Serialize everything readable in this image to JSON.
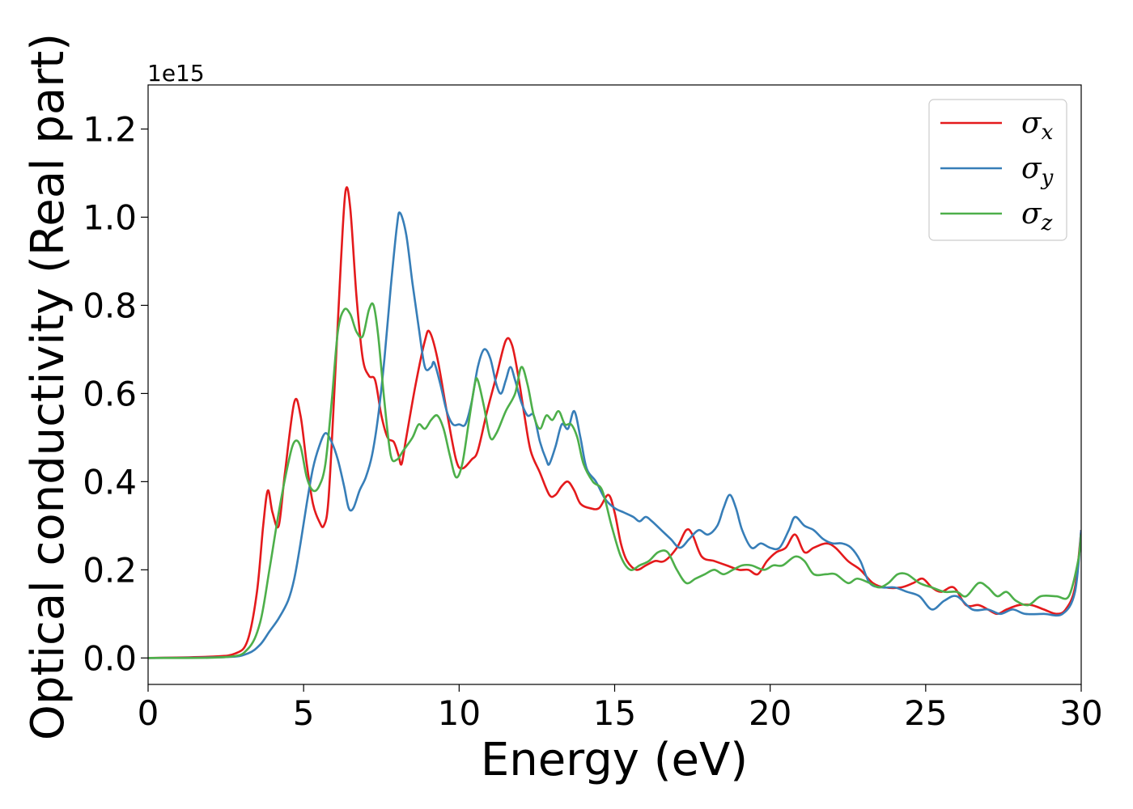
{
  "chart_data": {
    "type": "line",
    "xlabel": "Energy (eV)",
    "ylabel": "Optical conductivity (Real part)",
    "y_offset_label": "1e15",
    "xlim": [
      0,
      30
    ],
    "ylim": [
      -0.06,
      1.3
    ],
    "x_ticks": [
      0,
      5,
      10,
      15,
      20,
      25,
      30
    ],
    "x_tick_labels": [
      "0",
      "5",
      "10",
      "15",
      "20",
      "25",
      "30"
    ],
    "y_ticks": [
      0.0,
      0.2,
      0.4,
      0.6,
      0.8,
      1.0,
      1.2
    ],
    "y_tick_labels": [
      "0.0",
      "0.2",
      "0.4",
      "0.6",
      "0.8",
      "1.0",
      "1.2"
    ],
    "grid": false,
    "legend_position": "top-right",
    "series": [
      {
        "name": "σ",
        "subscript": "x",
        "color": "#e41a1c",
        "points": [
          [
            0,
            0
          ],
          [
            2,
            0.003
          ],
          [
            2.8,
            0.01
          ],
          [
            3.2,
            0.04
          ],
          [
            3.5,
            0.15
          ],
          [
            3.7,
            0.3
          ],
          [
            3.85,
            0.38
          ],
          [
            4.0,
            0.33
          ],
          [
            4.2,
            0.3
          ],
          [
            4.4,
            0.42
          ],
          [
            4.7,
            0.58
          ],
          [
            4.9,
            0.55
          ],
          [
            5.1,
            0.44
          ],
          [
            5.3,
            0.35
          ],
          [
            5.5,
            0.31
          ],
          [
            5.65,
            0.3
          ],
          [
            5.8,
            0.36
          ],
          [
            6.0,
            0.62
          ],
          [
            6.2,
            0.9
          ],
          [
            6.35,
            1.06
          ],
          [
            6.5,
            1.02
          ],
          [
            6.7,
            0.82
          ],
          [
            6.9,
            0.68
          ],
          [
            7.1,
            0.64
          ],
          [
            7.3,
            0.63
          ],
          [
            7.5,
            0.55
          ],
          [
            7.7,
            0.5
          ],
          [
            7.9,
            0.49
          ],
          [
            8.05,
            0.46
          ],
          [
            8.15,
            0.44
          ],
          [
            8.3,
            0.5
          ],
          [
            8.6,
            0.62
          ],
          [
            8.9,
            0.72
          ],
          [
            9.05,
            0.74
          ],
          [
            9.3,
            0.68
          ],
          [
            9.6,
            0.56
          ],
          [
            9.9,
            0.45
          ],
          [
            10.1,
            0.43
          ],
          [
            10.4,
            0.45
          ],
          [
            10.6,
            0.47
          ],
          [
            10.9,
            0.56
          ],
          [
            11.2,
            0.64
          ],
          [
            11.5,
            0.72
          ],
          [
            11.7,
            0.71
          ],
          [
            11.9,
            0.64
          ],
          [
            12.1,
            0.55
          ],
          [
            12.3,
            0.47
          ],
          [
            12.6,
            0.42
          ],
          [
            12.9,
            0.37
          ],
          [
            13.1,
            0.37
          ],
          [
            13.3,
            0.39
          ],
          [
            13.5,
            0.4
          ],
          [
            13.7,
            0.38
          ],
          [
            13.9,
            0.35
          ],
          [
            14.2,
            0.34
          ],
          [
            14.5,
            0.34
          ],
          [
            14.8,
            0.37
          ],
          [
            15.0,
            0.33
          ],
          [
            15.2,
            0.26
          ],
          [
            15.4,
            0.22
          ],
          [
            15.7,
            0.2
          ],
          [
            16.0,
            0.21
          ],
          [
            16.3,
            0.22
          ],
          [
            16.6,
            0.22
          ],
          [
            17.0,
            0.25
          ],
          [
            17.3,
            0.29
          ],
          [
            17.5,
            0.28
          ],
          [
            17.8,
            0.23
          ],
          [
            18.2,
            0.22
          ],
          [
            18.6,
            0.21
          ],
          [
            19.0,
            0.2
          ],
          [
            19.3,
            0.2
          ],
          [
            19.6,
            0.19
          ],
          [
            19.9,
            0.22
          ],
          [
            20.2,
            0.24
          ],
          [
            20.5,
            0.25
          ],
          [
            20.8,
            0.28
          ],
          [
            21.1,
            0.24
          ],
          [
            21.4,
            0.25
          ],
          [
            21.8,
            0.26
          ],
          [
            22.1,
            0.25
          ],
          [
            22.5,
            0.22
          ],
          [
            22.9,
            0.2
          ],
          [
            23.3,
            0.17
          ],
          [
            23.7,
            0.16
          ],
          [
            24.2,
            0.16
          ],
          [
            24.6,
            0.17
          ],
          [
            24.9,
            0.18
          ],
          [
            25.2,
            0.16
          ],
          [
            25.5,
            0.15
          ],
          [
            25.9,
            0.16
          ],
          [
            26.3,
            0.12
          ],
          [
            26.7,
            0.12
          ],
          [
            27.0,
            0.11
          ],
          [
            27.3,
            0.1
          ],
          [
            27.6,
            0.11
          ],
          [
            28.0,
            0.12
          ],
          [
            28.4,
            0.12
          ],
          [
            28.8,
            0.11
          ],
          [
            29.2,
            0.1
          ],
          [
            29.5,
            0.11
          ],
          [
            29.8,
            0.16
          ],
          [
            30,
            0.29
          ]
        ]
      },
      {
        "name": "σ",
        "subscript": "y",
        "color": "#377eb8",
        "points": [
          [
            0,
            0
          ],
          [
            2.5,
            0.002
          ],
          [
            3.2,
            0.01
          ],
          [
            3.6,
            0.03
          ],
          [
            3.9,
            0.06
          ],
          [
            4.2,
            0.09
          ],
          [
            4.5,
            0.13
          ],
          [
            4.7,
            0.18
          ],
          [
            4.9,
            0.26
          ],
          [
            5.1,
            0.35
          ],
          [
            5.3,
            0.43
          ],
          [
            5.5,
            0.48
          ],
          [
            5.7,
            0.51
          ],
          [
            5.9,
            0.49
          ],
          [
            6.1,
            0.45
          ],
          [
            6.3,
            0.39
          ],
          [
            6.45,
            0.34
          ],
          [
            6.6,
            0.34
          ],
          [
            6.8,
            0.38
          ],
          [
            7.0,
            0.41
          ],
          [
            7.2,
            0.46
          ],
          [
            7.4,
            0.55
          ],
          [
            7.6,
            0.68
          ],
          [
            7.8,
            0.84
          ],
          [
            8.0,
            0.98
          ],
          [
            8.1,
            1.01
          ],
          [
            8.3,
            0.96
          ],
          [
            8.5,
            0.85
          ],
          [
            8.7,
            0.75
          ],
          [
            8.9,
            0.66
          ],
          [
            9.1,
            0.66
          ],
          [
            9.2,
            0.67
          ],
          [
            9.4,
            0.62
          ],
          [
            9.6,
            0.56
          ],
          [
            9.8,
            0.53
          ],
          [
            10.0,
            0.53
          ],
          [
            10.2,
            0.53
          ],
          [
            10.4,
            0.58
          ],
          [
            10.6,
            0.66
          ],
          [
            10.8,
            0.7
          ],
          [
            11.0,
            0.68
          ],
          [
            11.2,
            0.62
          ],
          [
            11.35,
            0.6
          ],
          [
            11.5,
            0.63
          ],
          [
            11.65,
            0.66
          ],
          [
            11.8,
            0.63
          ],
          [
            12.0,
            0.58
          ],
          [
            12.2,
            0.55
          ],
          [
            12.4,
            0.55
          ],
          [
            12.6,
            0.49
          ],
          [
            12.8,
            0.45
          ],
          [
            12.9,
            0.44
          ],
          [
            13.1,
            0.48
          ],
          [
            13.3,
            0.53
          ],
          [
            13.5,
            0.52
          ],
          [
            13.7,
            0.56
          ],
          [
            13.9,
            0.5
          ],
          [
            14.1,
            0.43
          ],
          [
            14.4,
            0.4
          ],
          [
            14.7,
            0.36
          ],
          [
            15.0,
            0.34
          ],
          [
            15.3,
            0.33
          ],
          [
            15.6,
            0.32
          ],
          [
            15.8,
            0.31
          ],
          [
            16.0,
            0.32
          ],
          [
            16.2,
            0.31
          ],
          [
            16.5,
            0.29
          ],
          [
            16.8,
            0.27
          ],
          [
            17.1,
            0.25
          ],
          [
            17.4,
            0.27
          ],
          [
            17.7,
            0.29
          ],
          [
            18.0,
            0.28
          ],
          [
            18.3,
            0.3
          ],
          [
            18.5,
            0.34
          ],
          [
            18.7,
            0.37
          ],
          [
            18.9,
            0.34
          ],
          [
            19.1,
            0.29
          ],
          [
            19.4,
            0.25
          ],
          [
            19.7,
            0.26
          ],
          [
            20.0,
            0.25
          ],
          [
            20.3,
            0.25
          ],
          [
            20.6,
            0.29
          ],
          [
            20.8,
            0.32
          ],
          [
            21.1,
            0.3
          ],
          [
            21.4,
            0.29
          ],
          [
            21.7,
            0.27
          ],
          [
            22.0,
            0.26
          ],
          [
            22.3,
            0.26
          ],
          [
            22.6,
            0.25
          ],
          [
            22.9,
            0.22
          ],
          [
            23.2,
            0.17
          ],
          [
            23.6,
            0.16
          ],
          [
            24.0,
            0.16
          ],
          [
            24.4,
            0.15
          ],
          [
            24.8,
            0.14
          ],
          [
            25.2,
            0.11
          ],
          [
            25.6,
            0.13
          ],
          [
            26.0,
            0.14
          ],
          [
            26.5,
            0.11
          ],
          [
            27.0,
            0.11
          ],
          [
            27.4,
            0.1
          ],
          [
            27.8,
            0.11
          ],
          [
            28.2,
            0.1
          ],
          [
            28.8,
            0.1
          ],
          [
            29.4,
            0.1
          ],
          [
            29.8,
            0.15
          ],
          [
            30,
            0.29
          ]
        ]
      },
      {
        "name": "σ",
        "subscript": "z",
        "color": "#4daf4a",
        "points": [
          [
            0,
            0
          ],
          [
            2.5,
            0.002
          ],
          [
            3.2,
            0.02
          ],
          [
            3.6,
            0.08
          ],
          [
            3.9,
            0.2
          ],
          [
            4.2,
            0.33
          ],
          [
            4.5,
            0.44
          ],
          [
            4.7,
            0.49
          ],
          [
            4.9,
            0.48
          ],
          [
            5.1,
            0.41
          ],
          [
            5.3,
            0.38
          ],
          [
            5.5,
            0.39
          ],
          [
            5.7,
            0.44
          ],
          [
            5.9,
            0.58
          ],
          [
            6.1,
            0.74
          ],
          [
            6.3,
            0.79
          ],
          [
            6.5,
            0.78
          ],
          [
            6.7,
            0.74
          ],
          [
            6.9,
            0.73
          ],
          [
            7.1,
            0.79
          ],
          [
            7.25,
            0.8
          ],
          [
            7.4,
            0.73
          ],
          [
            7.6,
            0.58
          ],
          [
            7.8,
            0.46
          ],
          [
            8.0,
            0.45
          ],
          [
            8.2,
            0.47
          ],
          [
            8.5,
            0.5
          ],
          [
            8.7,
            0.53
          ],
          [
            8.9,
            0.52
          ],
          [
            9.1,
            0.54
          ],
          [
            9.3,
            0.55
          ],
          [
            9.5,
            0.52
          ],
          [
            9.7,
            0.46
          ],
          [
            9.9,
            0.41
          ],
          [
            10.1,
            0.44
          ],
          [
            10.3,
            0.53
          ],
          [
            10.5,
            0.62
          ],
          [
            10.6,
            0.63
          ],
          [
            10.8,
            0.57
          ],
          [
            11.0,
            0.5
          ],
          [
            11.2,
            0.51
          ],
          [
            11.5,
            0.56
          ],
          [
            11.8,
            0.6
          ],
          [
            12.0,
            0.66
          ],
          [
            12.2,
            0.62
          ],
          [
            12.4,
            0.55
          ],
          [
            12.6,
            0.52
          ],
          [
            12.8,
            0.55
          ],
          [
            13.0,
            0.54
          ],
          [
            13.2,
            0.56
          ],
          [
            13.4,
            0.53
          ],
          [
            13.6,
            0.53
          ],
          [
            13.8,
            0.5
          ],
          [
            14.0,
            0.44
          ],
          [
            14.3,
            0.4
          ],
          [
            14.6,
            0.38
          ],
          [
            14.9,
            0.3
          ],
          [
            15.2,
            0.23
          ],
          [
            15.5,
            0.2
          ],
          [
            15.8,
            0.21
          ],
          [
            16.1,
            0.22
          ],
          [
            16.4,
            0.24
          ],
          [
            16.7,
            0.24
          ],
          [
            17.0,
            0.2
          ],
          [
            17.3,
            0.17
          ],
          [
            17.6,
            0.18
          ],
          [
            17.9,
            0.19
          ],
          [
            18.2,
            0.2
          ],
          [
            18.5,
            0.19
          ],
          [
            18.8,
            0.2
          ],
          [
            19.1,
            0.21
          ],
          [
            19.4,
            0.21
          ],
          [
            19.8,
            0.2
          ],
          [
            20.1,
            0.21
          ],
          [
            20.4,
            0.21
          ],
          [
            20.8,
            0.23
          ],
          [
            21.1,
            0.22
          ],
          [
            21.4,
            0.19
          ],
          [
            21.8,
            0.19
          ],
          [
            22.1,
            0.19
          ],
          [
            22.5,
            0.17
          ],
          [
            22.8,
            0.18
          ],
          [
            23.2,
            0.17
          ],
          [
            23.5,
            0.16
          ],
          [
            23.8,
            0.17
          ],
          [
            24.1,
            0.19
          ],
          [
            24.4,
            0.19
          ],
          [
            24.8,
            0.17
          ],
          [
            25.2,
            0.16
          ],
          [
            25.6,
            0.15
          ],
          [
            26.0,
            0.15
          ],
          [
            26.3,
            0.14
          ],
          [
            26.7,
            0.17
          ],
          [
            27.0,
            0.16
          ],
          [
            27.3,
            0.14
          ],
          [
            27.6,
            0.15
          ],
          [
            27.9,
            0.13
          ],
          [
            28.3,
            0.12
          ],
          [
            28.7,
            0.14
          ],
          [
            29.2,
            0.14
          ],
          [
            29.6,
            0.14
          ],
          [
            29.9,
            0.22
          ],
          [
            30,
            0.28
          ]
        ]
      }
    ]
  }
}
